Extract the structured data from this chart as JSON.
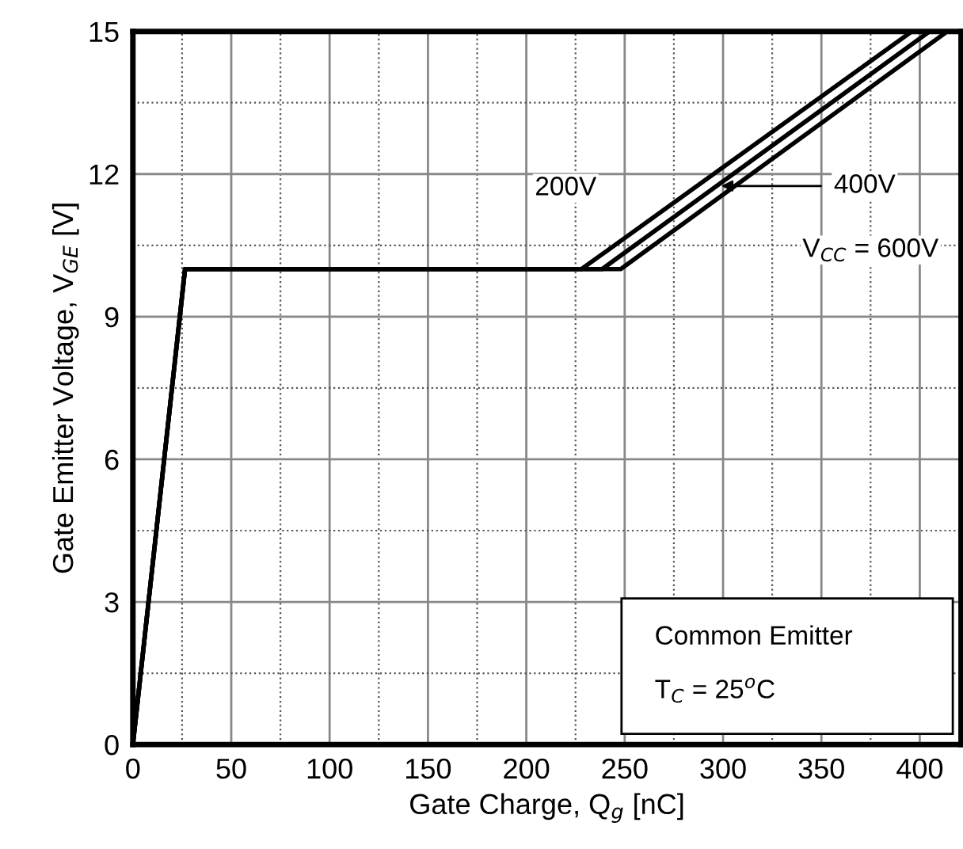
{
  "chart_data": {
    "type": "line",
    "xlabel": "Gate Charge, Q$_{g}$ [nC]",
    "ylabel": "Gate Emitter Voltage, V$_{GE}$ [V]",
    "xlim": [
      0,
      421
    ],
    "ylim": [
      0,
      15
    ],
    "xticks": [
      0,
      50,
      100,
      150,
      200,
      250,
      300,
      350,
      400
    ],
    "yticks": [
      0,
      3,
      6,
      9,
      12,
      15
    ],
    "grid": true,
    "marker": "none",
    "line_style": "solid",
    "series": [
      {
        "name": "200V",
        "color": "#000000",
        "x": [
          0,
          26.5,
          228,
          396
        ],
        "values": [
          0,
          10,
          10,
          15
        ]
      },
      {
        "name": "400V",
        "color": "#000000",
        "x": [
          0,
          26.5,
          238.5,
          405
        ],
        "values": [
          0,
          10,
          10,
          15
        ]
      },
      {
        "name": "V$_{CC}$ = 600V",
        "color": "#000000",
        "x": [
          0,
          26.5,
          248,
          414
        ],
        "values": [
          0,
          10,
          10,
          15
        ]
      }
    ],
    "annotations": [
      "Common Emitter",
      "T$_{C}$ = 25$^{o}$C"
    ]
  }
}
